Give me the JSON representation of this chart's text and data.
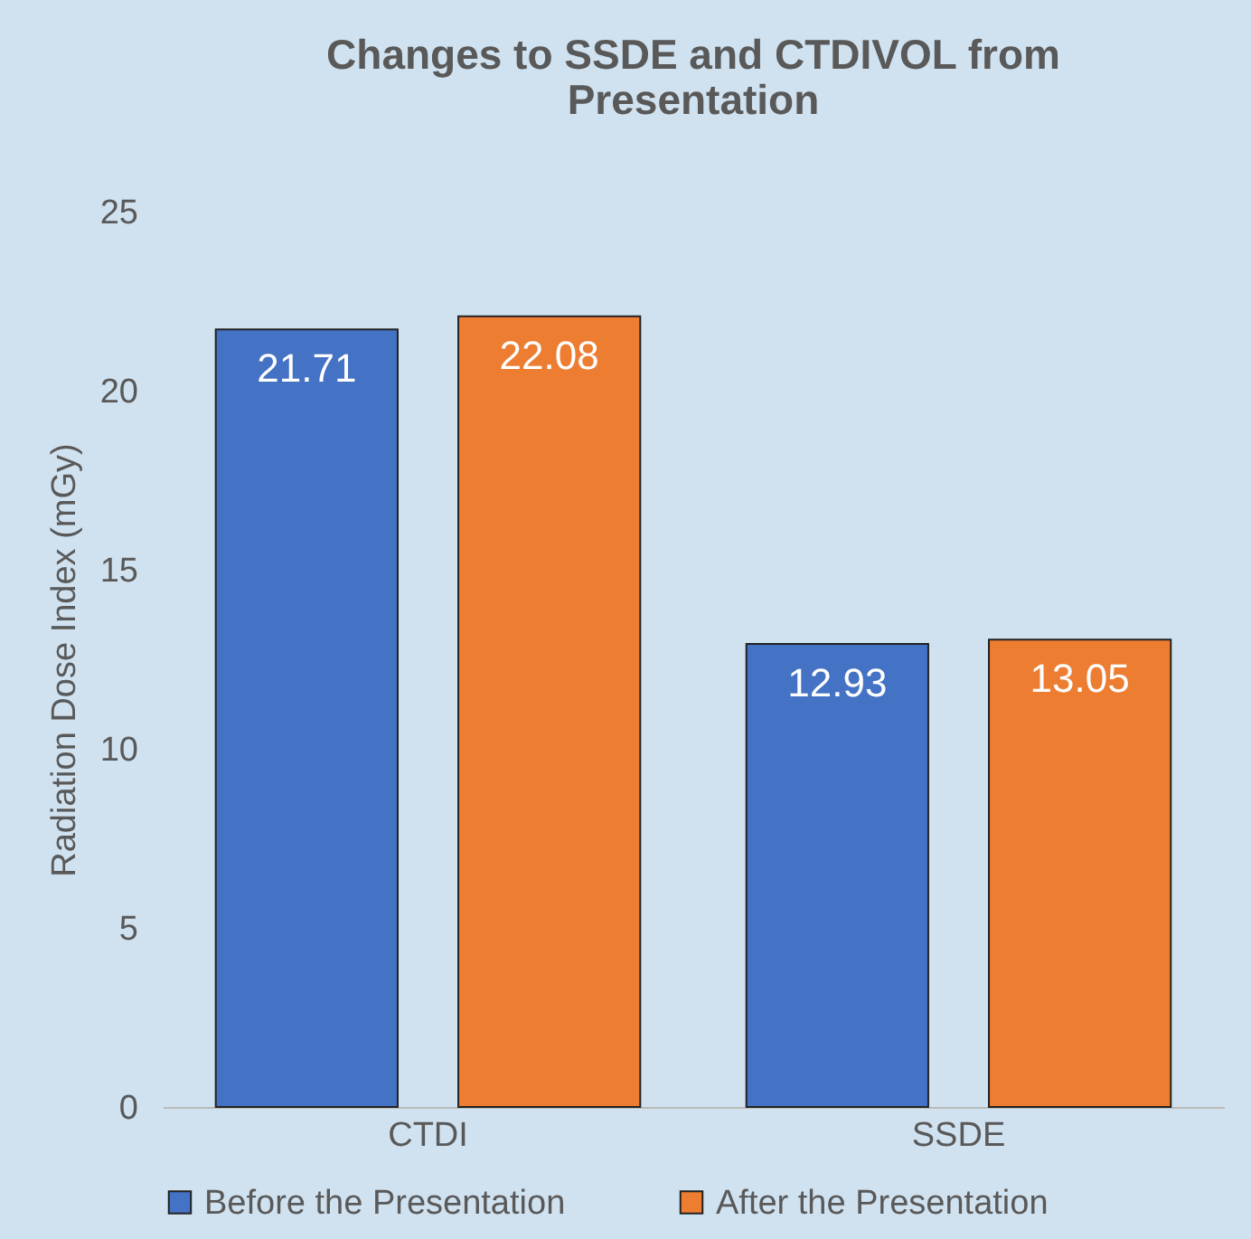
{
  "chart_data": {
    "type": "bar",
    "title": "Changes to SSDE and CTDIVOL from Presentation",
    "ylabel": "Radiation Dose Index (mGy)",
    "categories": [
      "CTDI",
      "SSDE"
    ],
    "series": [
      {
        "name": "Before the Presentation",
        "color": "#4472c4",
        "values": [
          21.71,
          12.93
        ]
      },
      {
        "name": "After the Presentation",
        "color": "#ed7d31",
        "values": [
          22.08,
          13.05
        ]
      }
    ],
    "ylim": [
      0,
      25
    ],
    "yticks": [
      0,
      5,
      10,
      15,
      20,
      25
    ],
    "grid": false,
    "legend": "bottom",
    "data_labels": true
  }
}
